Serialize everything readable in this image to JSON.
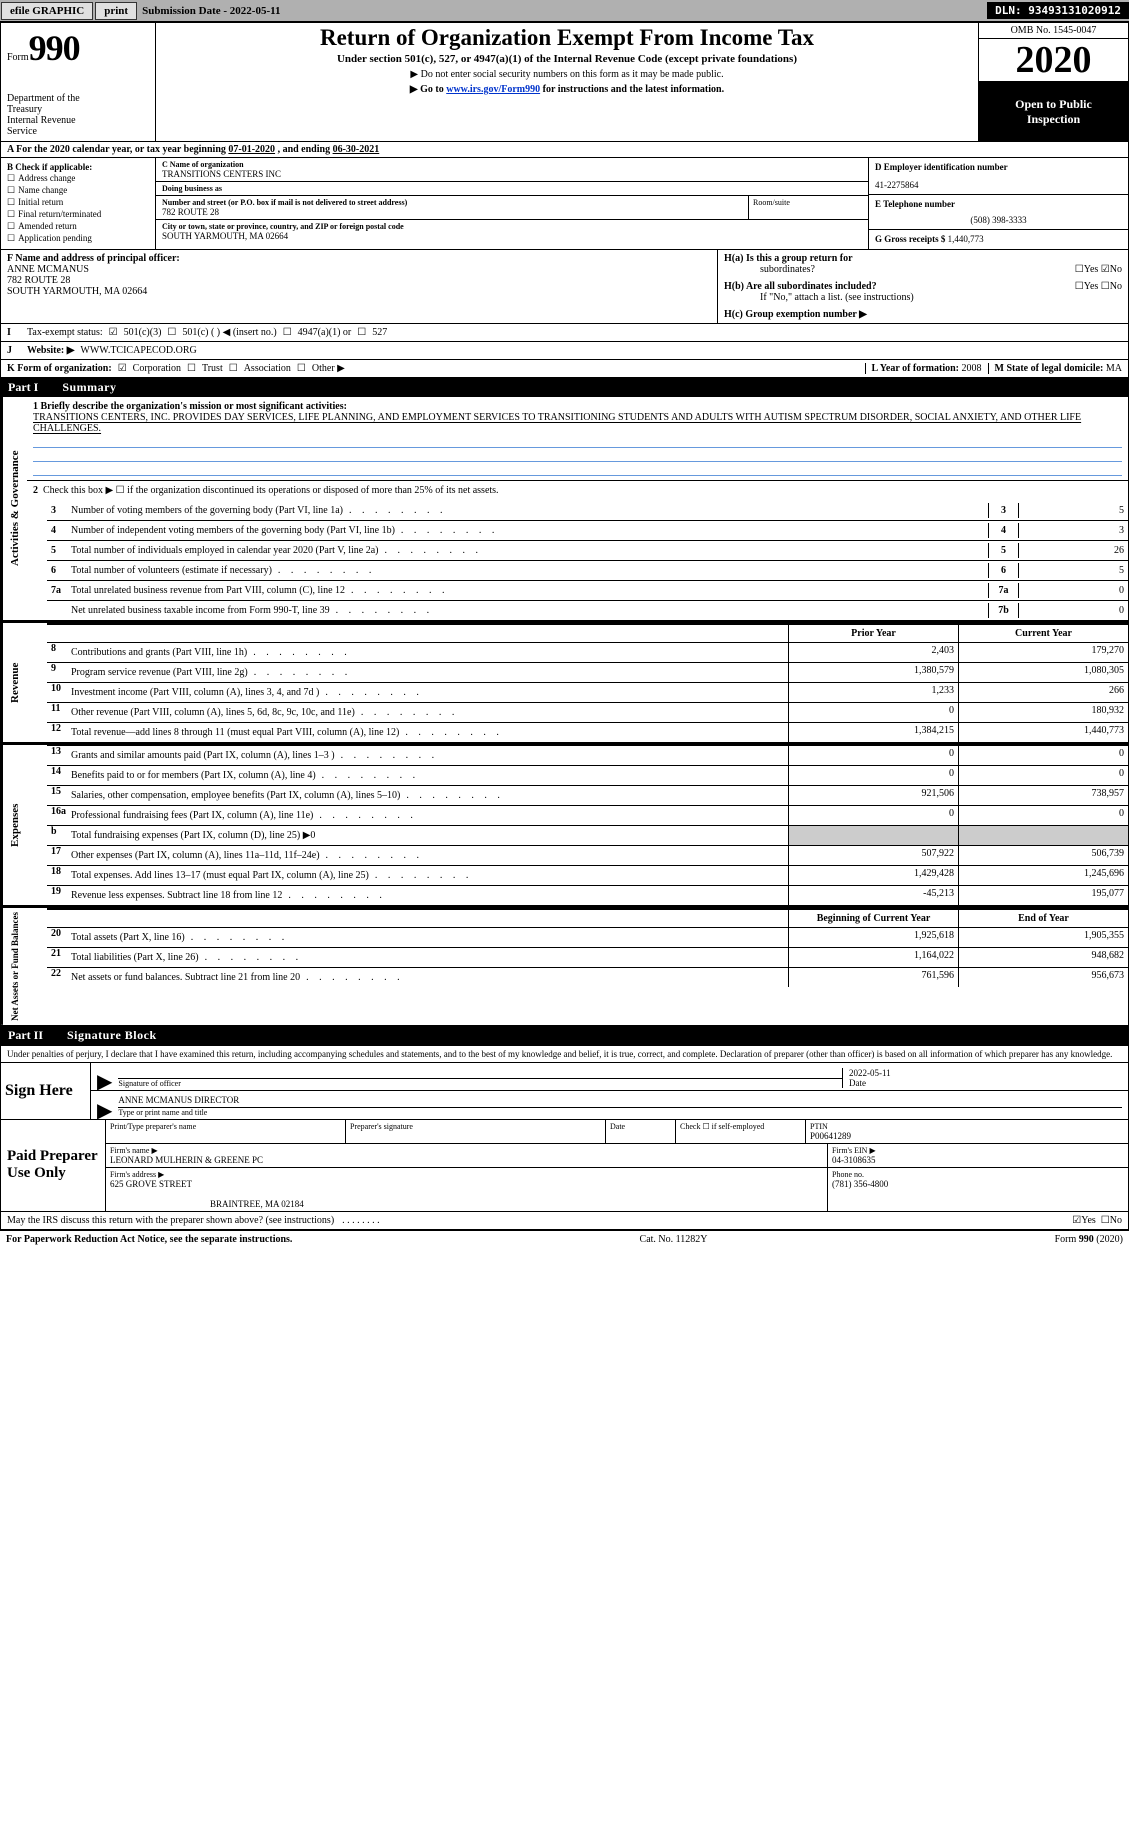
{
  "colors": {
    "accent_link": "#0033cc",
    "underline_blue": "#6699dd",
    "bar_gray": "#b0b0b0",
    "button_gray": "#e0e0e0",
    "shade_gray": "#cccccc",
    "black": "#000000",
    "white": "#ffffff"
  },
  "topbar": {
    "efile": "efile GRAPHIC",
    "print": "print",
    "submission_prefix": "Submission Date - ",
    "submission_date": "2022-05-11",
    "dln_prefix": "DLN: ",
    "dln": "93493131020912"
  },
  "header": {
    "form_word": "Form",
    "form_number": "990",
    "title": "Return of Organization Exempt From Income Tax",
    "subtitle": "Under section 501(c), 527, or 4947(a)(1) of the Internal Revenue Code (except private foundations)",
    "dont_enter": "▶ Do not enter social security numbers on this form as it may be made public.",
    "goto_prefix": "▶ Go to ",
    "goto_link": "www.irs.gov/Form990",
    "goto_suffix": " for instructions and the latest information.",
    "dept_line1": "Department of the",
    "dept_line2": "Treasury",
    "dept_line3": "Internal Revenue",
    "dept_line4": "Service",
    "omb": "OMB No. 1545-0047",
    "year": "2020",
    "open1": "Open to Public",
    "open2": "Inspection"
  },
  "period": {
    "prefix": "A For the 2020 calendar year, or tax year beginning ",
    "begin": "07-01-2020",
    "mid": " , and ending ",
    "end": "06-30-2021"
  },
  "entity": {
    "B": {
      "label": "B Check if applicable:",
      "options": [
        "Address change",
        "Name change",
        "Initial return",
        "Final return/terminated",
        "Amended return",
        "Application pending"
      ]
    },
    "C": {
      "name_label": "C Name of organization",
      "name": "TRANSITIONS CENTERS INC",
      "dba_label": "Doing business as",
      "dba": "",
      "street_label": "Number and street (or P.O. box if mail is not delivered to street address)",
      "street": "782 ROUTE 28",
      "room_label": "Room/suite",
      "room": "",
      "city_label": "City or town, state or province, country, and ZIP or foreign postal code",
      "city": "SOUTH YARMOUTH, MA  02664"
    },
    "D": {
      "label": "D Employer identification number",
      "value": "41-2275864"
    },
    "E": {
      "label": "E Telephone number",
      "value": "(508) 398-3333"
    },
    "G": {
      "label": "G Gross receipts $ ",
      "value": "1,440,773"
    }
  },
  "F": {
    "label": "F Name and address of principal officer:",
    "name": "ANNE MCMANUS",
    "street": "782 ROUTE 28",
    "city": "SOUTH YARMOUTH, MA  02664"
  },
  "H": {
    "a": "H(a)  Is this a group return for",
    "a2": "subordinates?",
    "b": "H(b)  Are all subordinates included?",
    "b2": "If \"No,\" attach a list. (see instructions)",
    "c": "H(c)  Group exemption number ▶",
    "yes": "Yes",
    "no": "No"
  },
  "I": {
    "label": "Tax-exempt status:",
    "o1": "501(c)(3)",
    "o2": "501(c) (  ) ◀ (insert no.)",
    "o3": "4947(a)(1) or",
    "o4": "527"
  },
  "J": {
    "label": "Website: ▶",
    "value": "WWW.TCICAPECOD.ORG"
  },
  "K": {
    "label": "K Form of organization:",
    "o1": "Corporation",
    "o2": "Trust",
    "o3": "Association",
    "o4": "Other ▶",
    "L": "L Year of formation: ",
    "Lval": "2008",
    "M": "M State of legal domicile: ",
    "Mval": "MA"
  },
  "part1": {
    "partnum": "Part I",
    "title": "Summary",
    "sec_governance": "Activities & Governance",
    "sec_revenue": "Revenue",
    "sec_expenses": "Expenses",
    "sec_netassets": "Net Assets or Fund Balances",
    "q1_prompt": "1   Briefly describe the organization's mission or most significant activities:",
    "q1_text": "TRANSITIONS CENTERS, INC. PROVIDES DAY SERVICES, LIFE PLANNING, AND EMPLOYMENT SERVICES TO TRANSITIONING STUDENTS AND ADULTS WITH AUTISM SPECTRUM DISORDER, SOCIAL ANXIETY, AND OTHER LIFE CHALLENGES.",
    "q2": "Check this box ▶ ☐ if the organization discontinued its operations or disposed of more than 25% of its net assets.",
    "rows_boxed": [
      {
        "no": "3",
        "desc": "Number of voting members of the governing body (Part VI, line 1a)",
        "boxno": "3",
        "val": "5"
      },
      {
        "no": "4",
        "desc": "Number of independent voting members of the governing body (Part VI, line 1b)",
        "boxno": "4",
        "val": "3"
      },
      {
        "no": "5",
        "desc": "Total number of individuals employed in calendar year 2020 (Part V, line 2a)",
        "boxno": "5",
        "val": "26"
      },
      {
        "no": "6",
        "desc": "Total number of volunteers (estimate if necessary)",
        "boxno": "6",
        "val": "5"
      },
      {
        "no": "7a",
        "desc": "Total unrelated business revenue from Part VIII, column (C), line 12",
        "boxno": "7a",
        "val": "0"
      },
      {
        "no": "",
        "desc": "Net unrelated business taxable income from Form 990-T, line 39",
        "boxno": "7b",
        "val": "0"
      },
      {
        "no": "b",
        "desc": "",
        "boxno": "",
        "val": ""
      }
    ],
    "col_prior": "Prior Year",
    "col_current": "Current Year",
    "revenue": [
      {
        "no": "8",
        "desc": "Contributions and grants (Part VIII, line 1h)",
        "p": "2,403",
        "c": "179,270"
      },
      {
        "no": "9",
        "desc": "Program service revenue (Part VIII, line 2g)",
        "p": "1,380,579",
        "c": "1,080,305"
      },
      {
        "no": "10",
        "desc": "Investment income (Part VIII, column (A), lines 3, 4, and 7d )",
        "p": "1,233",
        "c": "266"
      },
      {
        "no": "11",
        "desc": "Other revenue (Part VIII, column (A), lines 5, 6d, 8c, 9c, 10c, and 11e)",
        "p": "0",
        "c": "180,932"
      },
      {
        "no": "12",
        "desc": "Total revenue—add lines 8 through 11 (must equal Part VIII, column (A), line 12)",
        "p": "1,384,215",
        "c": "1,440,773"
      }
    ],
    "expenses": [
      {
        "no": "13",
        "desc": "Grants and similar amounts paid (Part IX, column (A), lines 1–3 )",
        "p": "0",
        "c": "0"
      },
      {
        "no": "14",
        "desc": "Benefits paid to or for members (Part IX, column (A), line 4)",
        "p": "0",
        "c": "0"
      },
      {
        "no": "15",
        "desc": "Salaries, other compensation, employee benefits (Part IX, column (A), lines 5–10)",
        "p": "921,506",
        "c": "738,957"
      },
      {
        "no": "16a",
        "desc": "Professional fundraising fees (Part IX, column (A), line 11e)",
        "p": "0",
        "c": "0"
      },
      {
        "no": "b",
        "desc": "Total fundraising expenses (Part IX, column (D), line 25) ▶0",
        "p": "shade",
        "c": "shade"
      },
      {
        "no": "17",
        "desc": "Other expenses (Part IX, column (A), lines 11a–11d, 11f–24e)",
        "p": "507,922",
        "c": "506,739"
      },
      {
        "no": "18",
        "desc": "Total expenses. Add lines 13–17 (must equal Part IX, column (A), line 25)",
        "p": "1,429,428",
        "c": "1,245,696"
      },
      {
        "no": "19",
        "desc": "Revenue less expenses. Subtract line 18 from line 12",
        "p": "-45,213",
        "c": "195,077"
      }
    ],
    "col_beg": "Beginning of Current Year",
    "col_eoy": "End of Year",
    "netassets": [
      {
        "no": "20",
        "desc": "Total assets (Part X, line 16)",
        "p": "1,925,618",
        "c": "1,905,355"
      },
      {
        "no": "21",
        "desc": "Total liabilities (Part X, line 26)",
        "p": "1,164,022",
        "c": "948,682"
      },
      {
        "no": "22",
        "desc": "Net assets or fund balances. Subtract line 21 from line 20",
        "p": "761,596",
        "c": "956,673"
      }
    ]
  },
  "part2": {
    "partnum": "Part II",
    "title": "Signature Block",
    "decl": "Under penalties of perjury, I declare that I have examined this return, including accompanying schedules and statements, and to the best of my knowledge and belief, it is true, correct, and complete. Declaration of preparer (other than officer) is based on all information of which preparer has any knowledge.",
    "sign_here": "Sign Here",
    "sig_of_officer": "Signature of officer",
    "date_lbl": "Date",
    "sig_date": "2022-05-11",
    "officer_name": "ANNE MCMANUS  DIRECTOR",
    "type_name_lbl": "Type or print name and title"
  },
  "preparer": {
    "section": "Paid Preparer Use Only",
    "print_lbl": "Print/Type preparer's name",
    "print_val": "",
    "sig_lbl": "Preparer's signature",
    "date_lbl": "Date",
    "check_lbl": "Check ☐ if self-employed",
    "ptin_lbl": "PTIN",
    "ptin": "P00641289",
    "firm_name_lbl": "Firm's name   ▶",
    "firm_name": "LEONARD MULHERIN & GREENE PC",
    "firm_ein_lbl": "Firm's EIN ▶",
    "firm_ein": "04-3108635",
    "firm_addr_lbl": "Firm's address ▶",
    "firm_addr1": "625 GROVE STREET",
    "firm_addr2": "BRAINTREE, MA  02184",
    "phone_lbl": "Phone no. ",
    "phone": "(781) 356-4800"
  },
  "may_q": "May the IRS discuss this return with the preparer shown above? (see instructions)",
  "may_yes": "Yes",
  "may_no": "No",
  "footer": {
    "left": "For Paperwork Reduction Act Notice, see the separate instructions.",
    "mid": "Cat. No. 11282Y",
    "right": "Form 990 (2020)"
  },
  "dots": ".   .   .   .   .   .   .   ."
}
